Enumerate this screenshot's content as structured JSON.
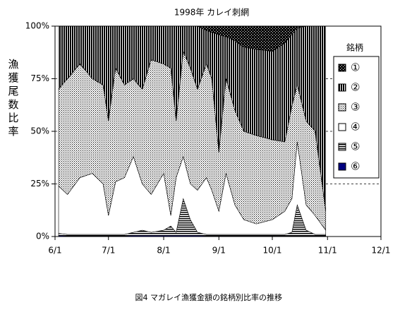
{
  "chart_data": {
    "type": "stacked-area-percent",
    "title": "1998年 カレイ刺網",
    "y_label": "漁獲尾数比率",
    "caption": "図4 マガレイ漁獲金額の銘柄別比率の推移",
    "legend_title": "銘柄",
    "legend": "right",
    "grid": true,
    "x": [
      "6/3",
      "6/8",
      "6/15",
      "6/22",
      "6/28",
      "7/1",
      "7/5",
      "7/10",
      "7/15",
      "7/20",
      "7/25",
      "8/1",
      "8/5",
      "8/8",
      "8/12",
      "8/16",
      "8/20",
      "8/25",
      "8/28",
      "9/1",
      "9/5",
      "9/10",
      "9/15",
      "9/22",
      "10/1",
      "10/8",
      "10/12",
      "10/15",
      "10/20",
      "10/25",
      "10/31"
    ],
    "xlim": [
      "6/1",
      "12/1"
    ],
    "xticks": [
      "6/1",
      "7/1",
      "8/1",
      "9/1",
      "10/1",
      "11/1",
      "12/1"
    ],
    "ylim": [
      0,
      100
    ],
    "yticks": [
      {
        "value": 0,
        "label": "0%"
      },
      {
        "value": 25,
        "label": "25%"
      },
      {
        "value": 50,
        "label": "50%"
      },
      {
        "value": 75,
        "label": "75%"
      },
      {
        "value": 100,
        "label": "100%"
      }
    ],
    "series": [
      {
        "name": "⑥",
        "color": "#000080",
        "pattern": "solid",
        "values": [
          0.5,
          0.3,
          0.3,
          0.3,
          0.3,
          0.3,
          0.3,
          0.3,
          0.5,
          0.5,
          0.5,
          0.5,
          0.5,
          0.5,
          0.5,
          0.5,
          0.5,
          0.3,
          0.3,
          0.3,
          0.3,
          0.3,
          0.3,
          0.3,
          0.3,
          0.3,
          0.3,
          0.3,
          0.3,
          0.3,
          0.3
        ]
      },
      {
        "name": "⑤",
        "color": "#000000",
        "pattern": "hstripes",
        "values": [
          1,
          0.7,
          0.7,
          0.7,
          0.7,
          0.7,
          0.7,
          0.7,
          1.5,
          2.5,
          1.5,
          2.5,
          4.5,
          1.5,
          17.5,
          7.5,
          1.5,
          0.7,
          0.7,
          0.7,
          0.7,
          0.7,
          0.7,
          0.7,
          0.7,
          0.7,
          1.7,
          14.7,
          2.7,
          0.7,
          0.7
        ]
      },
      {
        "name": "④",
        "color": "#ffffff",
        "pattern": "none",
        "values": [
          22.5,
          19,
          27,
          29,
          24,
          9,
          25,
          27,
          36,
          22,
          18,
          27,
          5,
          26,
          20,
          17,
          20,
          27,
          21,
          11,
          29,
          14,
          7,
          5,
          7,
          11,
          16,
          30,
          12,
          9,
          2
        ]
      },
      {
        "name": "③",
        "color": "#c8c8c8",
        "pattern": "dots",
        "values": [
          46,
          55,
          54,
          45,
          47,
          45,
          54,
          44,
          37,
          45,
          64,
          52,
          70,
          27,
          50,
          55,
          48,
          54,
          53,
          28,
          45,
          45,
          42,
          42,
          38,
          33,
          44,
          27,
          40,
          40,
          9
        ]
      },
      {
        "name": "②",
        "color": "#404040",
        "pattern": "vstripes",
        "values": [
          30,
          25,
          18,
          25,
          28,
          45,
          20,
          28,
          25,
          30,
          16,
          18,
          20,
          45,
          12,
          20,
          30,
          16,
          22,
          56,
          20,
          33,
          40,
          41,
          42,
          47,
          34,
          27,
          45,
          50,
          88
        ]
      },
      {
        "name": "①",
        "color": "#303030",
        "pattern": "checker",
        "values": [
          0,
          0,
          0,
          0,
          0,
          0,
          0,
          0,
          0,
          0,
          0,
          0,
          0,
          0,
          0,
          0,
          0,
          2,
          3,
          4,
          5,
          7,
          10,
          11,
          12,
          8,
          4,
          1,
          0,
          0,
          0
        ]
      }
    ]
  }
}
